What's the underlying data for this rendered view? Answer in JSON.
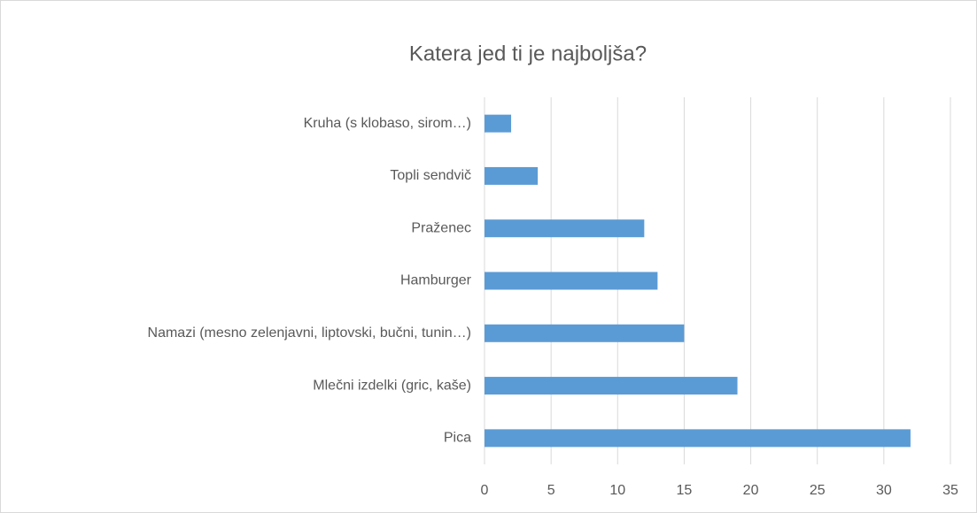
{
  "chart_data": {
    "type": "bar",
    "orientation": "horizontal",
    "title": "Katera jed ti je najboljša?",
    "categories": [
      "Kruha (s klobaso, sirom…)",
      "Topli sendvič",
      "Praženec",
      "Hamburger",
      "Namazi (mesno zelenjavni, liptovski, bučni, tunin…)",
      "Mlečni izdelki (gric, kaše)",
      "Pica"
    ],
    "values": [
      2,
      4,
      12,
      13,
      15,
      19,
      32
    ],
    "color": "#5b9bd5",
    "xlim": [
      0,
      35
    ],
    "xticks": [
      0,
      5,
      10,
      15,
      20,
      25,
      30,
      35
    ],
    "grid": true
  }
}
